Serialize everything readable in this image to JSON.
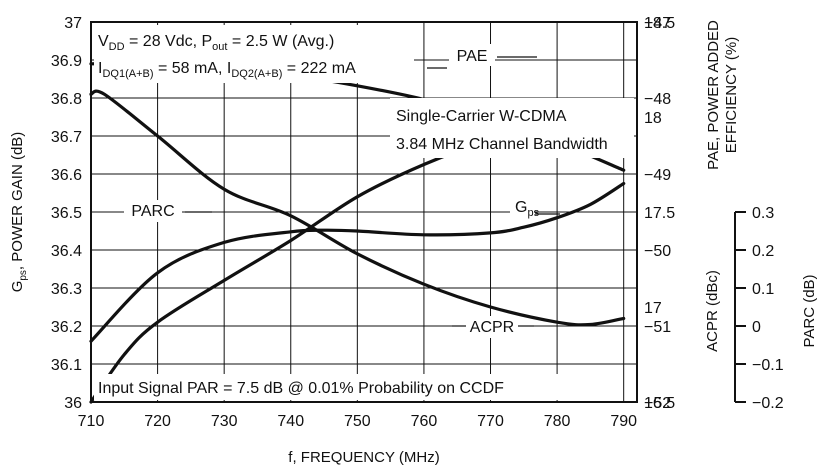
{
  "chart_data": {
    "type": "line",
    "xlabel": "f, FREQUENCY (MHz)",
    "x_ticks": [
      "710",
      "720",
      "730",
      "740",
      "750",
      "760",
      "770",
      "780",
      "790"
    ],
    "xlim": [
      710,
      792
    ],
    "axes": {
      "gps": {
        "label_main": "G",
        "label_sub": "ps",
        "label_rest": ", POWER GAIN (dB)",
        "ylim": [
          36,
          37
        ],
        "ticks": [
          "36",
          "36.1",
          "36.2",
          "36.3",
          "36.4",
          "36.5",
          "36.6",
          "36.7",
          "36.8",
          "36.9",
          "37"
        ]
      },
      "pae": {
        "label_line1": "PAE, POWER ADDED",
        "label_line2": "EFFICIENCY (%)",
        "ylim": [
          16.5,
          18.5
        ],
        "ticks": [
          "16.5",
          "17",
          "17.5",
          "18",
          "18.5"
        ]
      },
      "acpr": {
        "label": "ACPR (dBc)",
        "ylim": [
          -52,
          -47
        ],
        "ticks": [
          "-47",
          "-48",
          "-49",
          "-50",
          "-51",
          "-52"
        ]
      },
      "parc": {
        "label": "PARC (dB)",
        "ylim": [
          -0.2,
          0.3
        ],
        "ticks": [
          "0.3",
          "0.2",
          "0.1",
          "0",
          "-0.1",
          "-0.2"
        ]
      }
    },
    "series": [
      {
        "name": "PAE",
        "axis": "pae",
        "x": [
          710,
          715,
          720,
          730,
          740,
          750,
          760,
          770,
          780,
          790
        ],
        "values": [
          16.5,
          16.75,
          16.92,
          17.14,
          17.35,
          17.58,
          17.75,
          17.88,
          17.97,
          18.05
        ]
      },
      {
        "name": "Gps",
        "axis": "gps",
        "x": [
          710,
          720,
          730,
          740,
          745,
          750,
          760,
          770,
          775,
          780,
          785,
          790
        ],
        "values": [
          36.16,
          36.34,
          36.42,
          36.448,
          36.452,
          36.45,
          36.44,
          36.445,
          36.46,
          36.485,
          36.52,
          36.575
        ]
      },
      {
        "name": "ACPR",
        "axis": "acpr",
        "x": [
          710,
          712,
          720,
          730,
          740,
          750,
          760,
          770,
          780,
          785,
          790
        ],
        "values": [
          -47.95,
          -47.95,
          -48.5,
          -49.2,
          -49.55,
          -50.05,
          -50.45,
          -50.75,
          -50.95,
          -50.98,
          -50.9
        ]
      },
      {
        "name": "PARC",
        "axis": "parc",
        "x": [
          710,
          720,
          730,
          740,
          750,
          760,
          770,
          780,
          790
        ],
        "values": [
          0.245,
          0.245,
          0.238,
          0.23,
          0.216,
          0.198,
          0.173,
          0.142,
          0.105
        ]
      }
    ],
    "labels": {
      "pae": "PAE",
      "parc": "PARC",
      "gps_main": "G",
      "gps_sub": "ps",
      "acpr": "ACPR"
    },
    "annotations": {
      "cond1_a": "V",
      "cond1_a_sub": "DD",
      "cond1_b": " = 28 Vdc, P",
      "cond1_b_sub": "out",
      "cond1_c": " = 2.5 W (Avg.)",
      "cond2_a": "I",
      "cond2_a_sub": "DQ1(A+B)",
      "cond2_b": " = 58 mA, I",
      "cond2_b_sub": "DQ2(A+B)",
      "cond2_c": " = 222 mA",
      "signal_line1": "Single-Carrier W-CDMA",
      "signal_line2": "3.84 MHz Channel Bandwidth",
      "footer": "Input Signal PAR = 7.5 dB @ 0.01% Probability on CCDF"
    },
    "grid": true
  }
}
